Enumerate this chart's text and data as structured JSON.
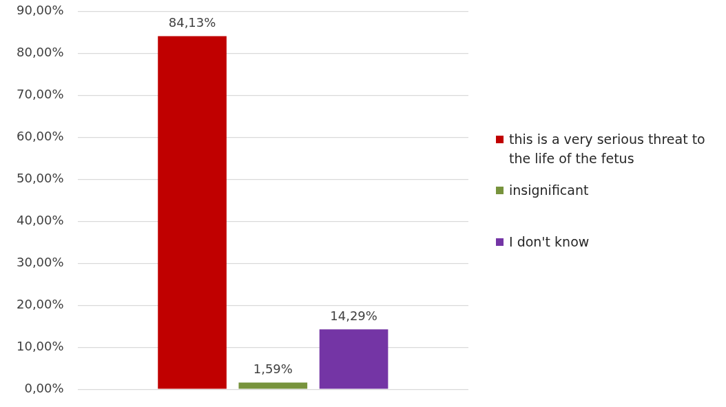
{
  "chart_data": {
    "type": "bar",
    "categories": [
      null
    ],
    "series": [
      {
        "name": "this is a very serious threat to the life of the fetus",
        "color": "#c00000",
        "values": [
          84.13
        ],
        "value_labels": [
          "84,13%"
        ]
      },
      {
        "name": "insignificant",
        "color": "#77933c",
        "values": [
          1.59
        ],
        "value_labels": [
          "1,59%"
        ]
      },
      {
        "name": "I don't know",
        "color": "#7435a5",
        "values": [
          14.29
        ],
        "value_labels": [
          "14,29%"
        ]
      }
    ],
    "ylim": [
      0,
      90
    ],
    "yticks": [
      {
        "value": 0,
        "label": "0,00%"
      },
      {
        "value": 10,
        "label": "10,00%"
      },
      {
        "value": 20,
        "label": "20,00%"
      },
      {
        "value": 30,
        "label": "30,00%"
      },
      {
        "value": 40,
        "label": "40,00%"
      },
      {
        "value": 50,
        "label": "50,00%"
      },
      {
        "value": 60,
        "label": "60,00%"
      },
      {
        "value": 70,
        "label": "70,00%"
      },
      {
        "value": 80,
        "label": "80,00%"
      },
      {
        "value": 90,
        "label": "90,00%"
      }
    ],
    "grid": "y",
    "legend": "right"
  }
}
